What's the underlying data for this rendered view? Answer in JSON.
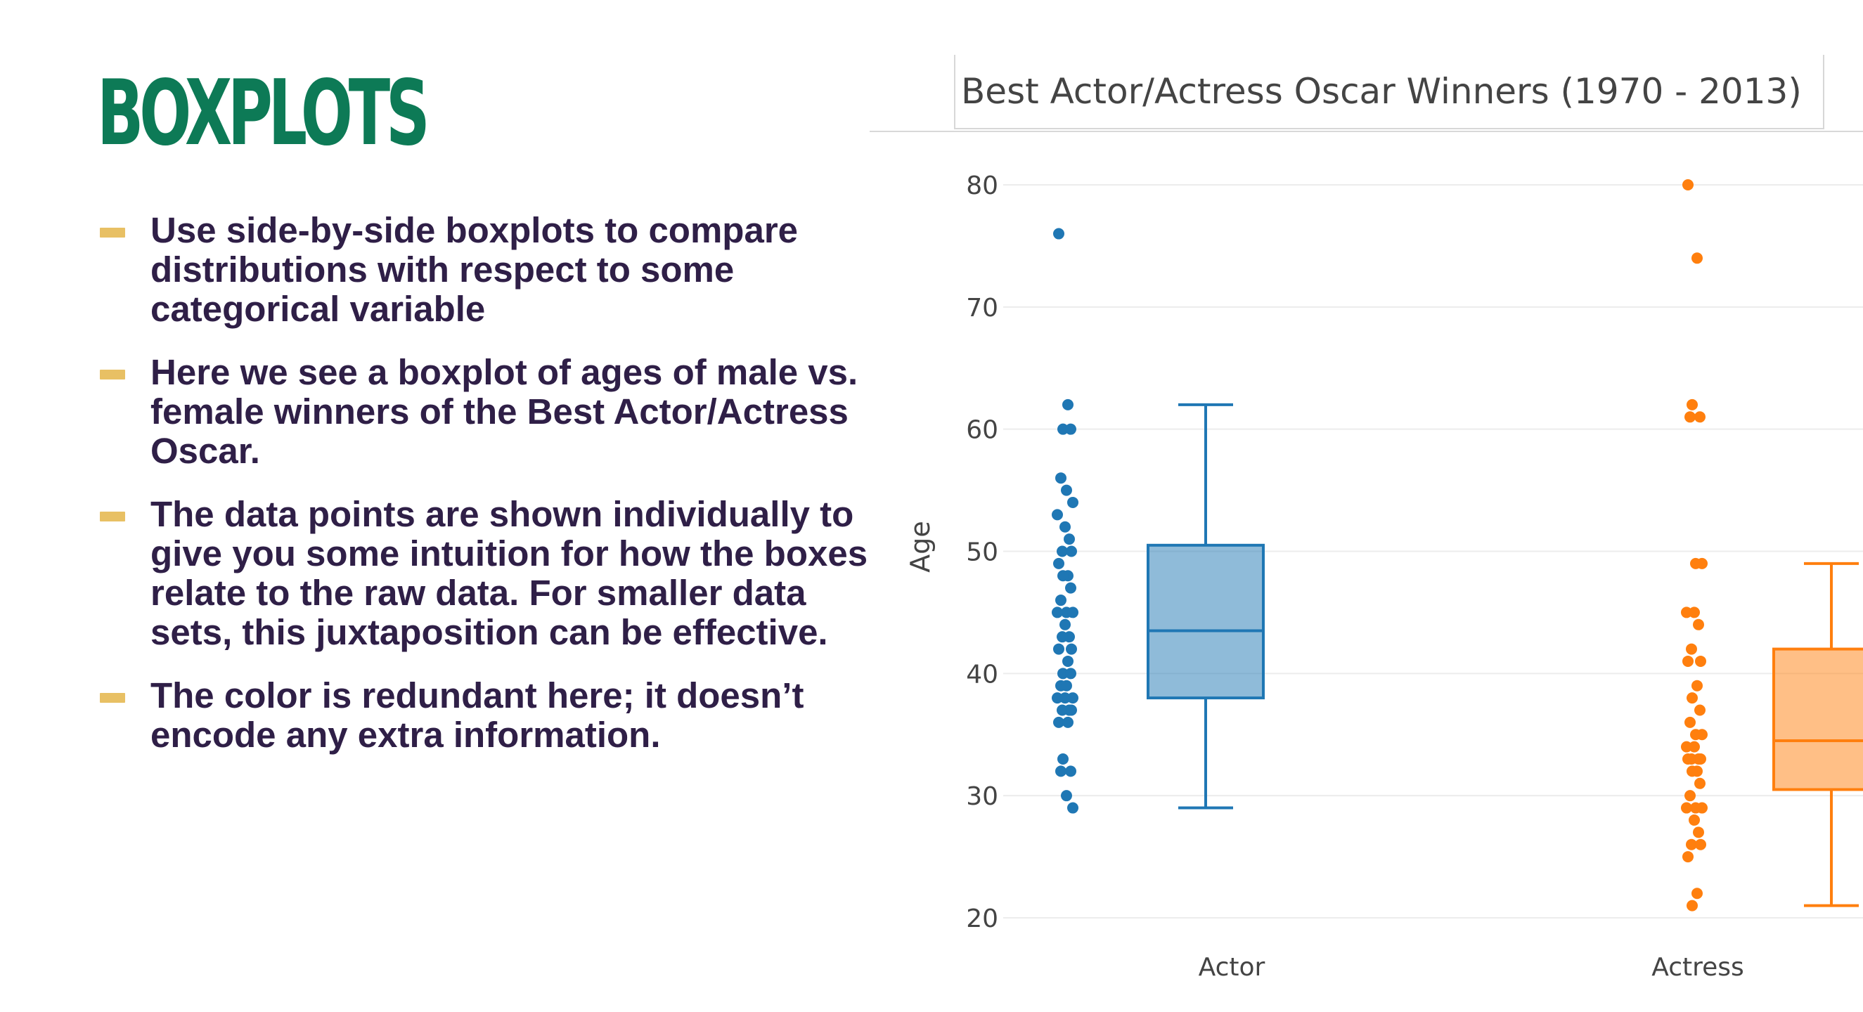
{
  "slide": {
    "title": "BOXPLOTS",
    "bullets": [
      "Use side-by-side boxplots to compare distributions with respect to some categorical variable",
      "Here we see a boxplot of ages of male vs. female winners of the Best Actor/Actress Oscar.",
      "The data points are shown individually to give you some intuition for how the boxes relate to the raw data.  For smaller data sets, this juxtaposition can be effective.",
      "The color is redundant here; it doesn’t encode any extra information."
    ]
  },
  "colors": {
    "title": "#0d7a56",
    "bullet_marker": "#e8c064",
    "bullet_text": "#2f1f47",
    "actor": "#1f77b4",
    "actress": "#ff7f0e"
  },
  "chart_data": {
    "type": "box",
    "title": "Best Actor/Actress Oscar Winners (1970 - 2013)",
    "xlabel": "",
    "ylabel": "Age",
    "ylim": [
      20,
      80
    ],
    "yticks": [
      20,
      30,
      40,
      50,
      60,
      70,
      80
    ],
    "grid": true,
    "legend": "none",
    "categories": [
      "Actor",
      "Actress"
    ],
    "series": [
      {
        "category": "Actor",
        "color": "#1f77b4",
        "box": {
          "min": 29,
          "q1": 38,
          "median": 43.5,
          "q3": 50.5,
          "max": 62
        },
        "points": [
          76,
          62,
          60,
          60,
          56,
          55,
          54,
          53,
          52,
          51,
          50,
          50,
          49,
          48,
          48,
          47,
          46,
          45,
          45,
          45,
          44,
          43,
          43,
          42,
          42,
          41,
          40,
          40,
          39,
          39,
          38,
          38,
          38,
          37,
          37,
          37,
          36,
          36,
          33,
          32,
          32,
          30,
          29
        ]
      },
      {
        "category": "Actress",
        "color": "#ff7f0e",
        "box": {
          "min": 21,
          "q1": 30.5,
          "median": 34.5,
          "q3": 42,
          "max": 49
        },
        "points": [
          80,
          74,
          62,
          61,
          61,
          49,
          49,
          45,
          45,
          44,
          42,
          41,
          41,
          39,
          38,
          37,
          36,
          35,
          35,
          34,
          34,
          33,
          33,
          33,
          33,
          32,
          32,
          31,
          30,
          29,
          29,
          29,
          28,
          27,
          26,
          26,
          25,
          22,
          21
        ]
      }
    ]
  }
}
